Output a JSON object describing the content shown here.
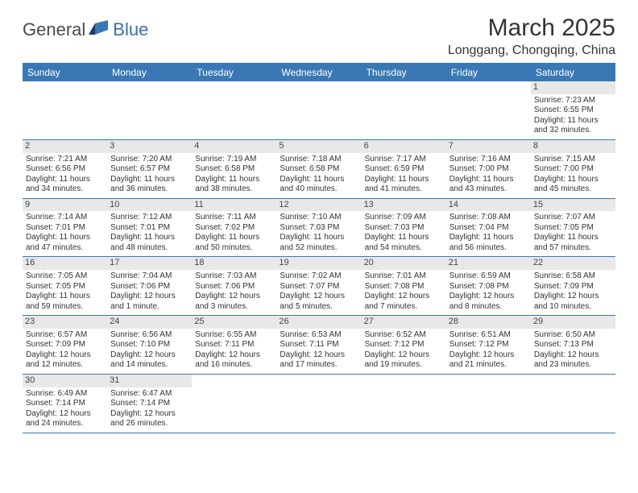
{
  "brand": {
    "part1": "General",
    "part2": "Blue"
  },
  "title": "March 2025",
  "location": "Longgang, Chongqing, China",
  "header_bg": "#3a78b5",
  "weekdays": [
    "Sunday",
    "Monday",
    "Tuesday",
    "Wednesday",
    "Thursday",
    "Friday",
    "Saturday"
  ],
  "first_weekday_index": 6,
  "days": [
    {
      "n": 1,
      "sunrise": "7:23 AM",
      "sunset": "6:55 PM",
      "daylight": "11 hours and 32 minutes."
    },
    {
      "n": 2,
      "sunrise": "7:21 AM",
      "sunset": "6:56 PM",
      "daylight": "11 hours and 34 minutes."
    },
    {
      "n": 3,
      "sunrise": "7:20 AM",
      "sunset": "6:57 PM",
      "daylight": "11 hours and 36 minutes."
    },
    {
      "n": 4,
      "sunrise": "7:19 AM",
      "sunset": "6:58 PM",
      "daylight": "11 hours and 38 minutes."
    },
    {
      "n": 5,
      "sunrise": "7:18 AM",
      "sunset": "6:58 PM",
      "daylight": "11 hours and 40 minutes."
    },
    {
      "n": 6,
      "sunrise": "7:17 AM",
      "sunset": "6:59 PM",
      "daylight": "11 hours and 41 minutes."
    },
    {
      "n": 7,
      "sunrise": "7:16 AM",
      "sunset": "7:00 PM",
      "daylight": "11 hours and 43 minutes."
    },
    {
      "n": 8,
      "sunrise": "7:15 AM",
      "sunset": "7:00 PM",
      "daylight": "11 hours and 45 minutes."
    },
    {
      "n": 9,
      "sunrise": "7:14 AM",
      "sunset": "7:01 PM",
      "daylight": "11 hours and 47 minutes."
    },
    {
      "n": 10,
      "sunrise": "7:12 AM",
      "sunset": "7:01 PM",
      "daylight": "11 hours and 48 minutes."
    },
    {
      "n": 11,
      "sunrise": "7:11 AM",
      "sunset": "7:02 PM",
      "daylight": "11 hours and 50 minutes."
    },
    {
      "n": 12,
      "sunrise": "7:10 AM",
      "sunset": "7:03 PM",
      "daylight": "11 hours and 52 minutes."
    },
    {
      "n": 13,
      "sunrise": "7:09 AM",
      "sunset": "7:03 PM",
      "daylight": "11 hours and 54 minutes."
    },
    {
      "n": 14,
      "sunrise": "7:08 AM",
      "sunset": "7:04 PM",
      "daylight": "11 hours and 56 minutes."
    },
    {
      "n": 15,
      "sunrise": "7:07 AM",
      "sunset": "7:05 PM",
      "daylight": "11 hours and 57 minutes."
    },
    {
      "n": 16,
      "sunrise": "7:05 AM",
      "sunset": "7:05 PM",
      "daylight": "11 hours and 59 minutes."
    },
    {
      "n": 17,
      "sunrise": "7:04 AM",
      "sunset": "7:06 PM",
      "daylight": "12 hours and 1 minute."
    },
    {
      "n": 18,
      "sunrise": "7:03 AM",
      "sunset": "7:06 PM",
      "daylight": "12 hours and 3 minutes."
    },
    {
      "n": 19,
      "sunrise": "7:02 AM",
      "sunset": "7:07 PM",
      "daylight": "12 hours and 5 minutes."
    },
    {
      "n": 20,
      "sunrise": "7:01 AM",
      "sunset": "7:08 PM",
      "daylight": "12 hours and 7 minutes."
    },
    {
      "n": 21,
      "sunrise": "6:59 AM",
      "sunset": "7:08 PM",
      "daylight": "12 hours and 8 minutes."
    },
    {
      "n": 22,
      "sunrise": "6:58 AM",
      "sunset": "7:09 PM",
      "daylight": "12 hours and 10 minutes."
    },
    {
      "n": 23,
      "sunrise": "6:57 AM",
      "sunset": "7:09 PM",
      "daylight": "12 hours and 12 minutes."
    },
    {
      "n": 24,
      "sunrise": "6:56 AM",
      "sunset": "7:10 PM",
      "daylight": "12 hours and 14 minutes."
    },
    {
      "n": 25,
      "sunrise": "6:55 AM",
      "sunset": "7:11 PM",
      "daylight": "12 hours and 16 minutes."
    },
    {
      "n": 26,
      "sunrise": "6:53 AM",
      "sunset": "7:11 PM",
      "daylight": "12 hours and 17 minutes."
    },
    {
      "n": 27,
      "sunrise": "6:52 AM",
      "sunset": "7:12 PM",
      "daylight": "12 hours and 19 minutes."
    },
    {
      "n": 28,
      "sunrise": "6:51 AM",
      "sunset": "7:12 PM",
      "daylight": "12 hours and 21 minutes."
    },
    {
      "n": 29,
      "sunrise": "6:50 AM",
      "sunset": "7:13 PM",
      "daylight": "12 hours and 23 minutes."
    },
    {
      "n": 30,
      "sunrise": "6:49 AM",
      "sunset": "7:14 PM",
      "daylight": "12 hours and 24 minutes."
    },
    {
      "n": 31,
      "sunrise": "6:47 AM",
      "sunset": "7:14 PM",
      "daylight": "12 hours and 26 minutes."
    }
  ],
  "labels": {
    "sunrise": "Sunrise:",
    "sunset": "Sunset:",
    "daylight": "Daylight:"
  },
  "style": {
    "day_number_bg": "#e8e8e8",
    "border_color": "#3a78b5",
    "cell_font_size": 10,
    "weekday_font_size": 12,
    "title_font_size": 30,
    "location_font_size": 16
  }
}
